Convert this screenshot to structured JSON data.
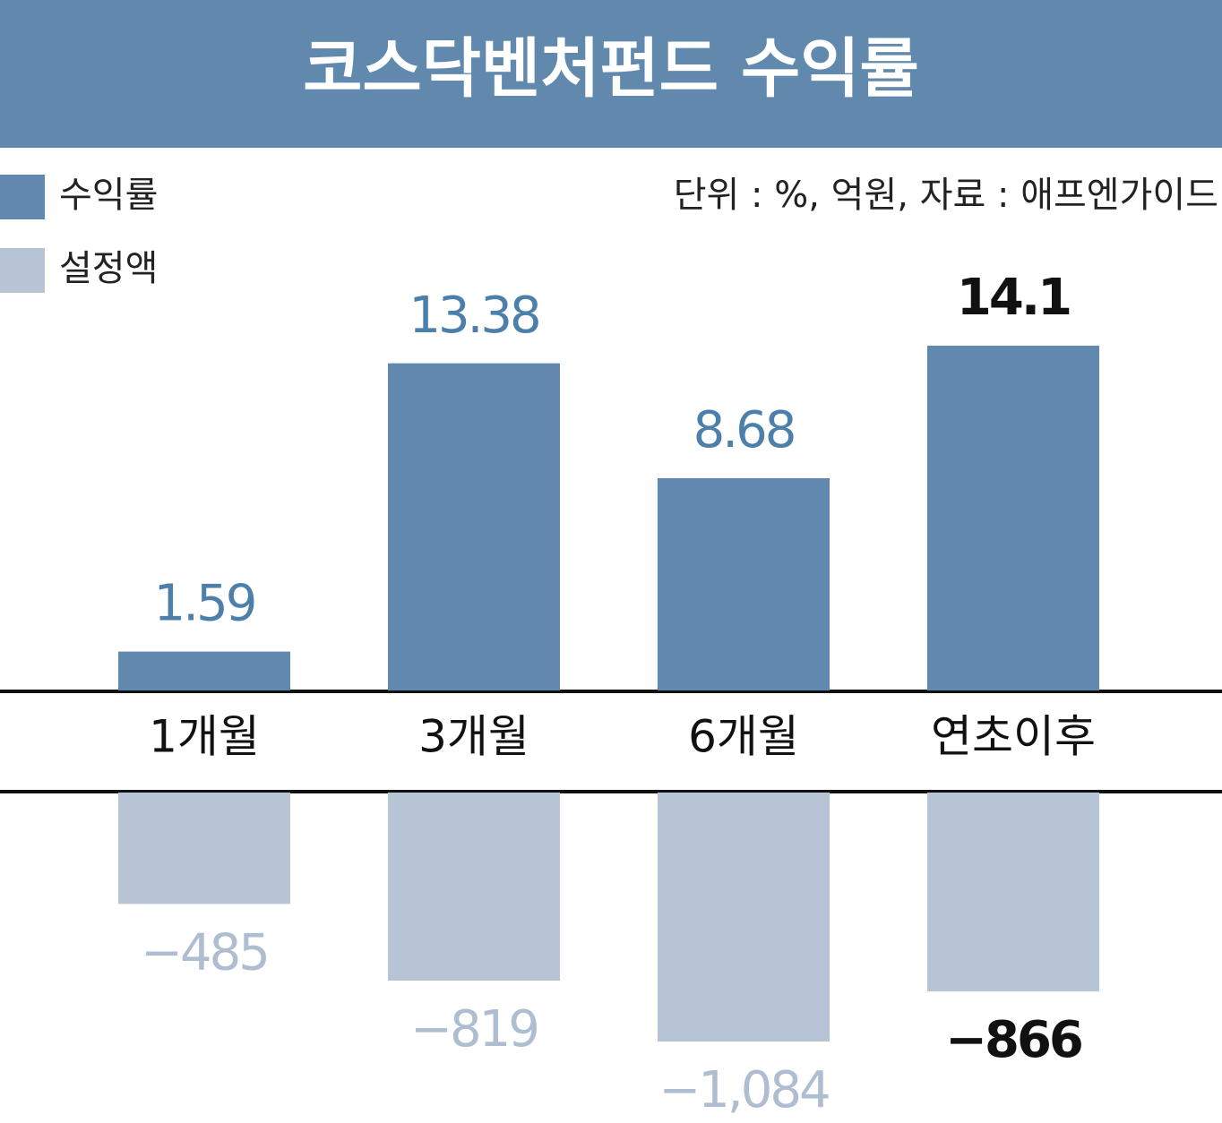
{
  "chart_data": {
    "type": "bar",
    "title": "코스닥벤처펀드 수익률",
    "note": "단위 : %, 억원, 자료 : 애프엔가이드",
    "categories": [
      "1개월",
      "3개월",
      "6개월",
      "연초이후"
    ],
    "series": [
      {
        "name": "수익률",
        "color": "#6189b0",
        "values": [
          1.59,
          13.38,
          8.68,
          14.1
        ]
      },
      {
        "name": "설정액",
        "color": "#b6c4d6",
        "values": [
          -485,
          -819,
          -1084,
          -866
        ],
        "value_labels": [
          "−485",
          "−819",
          "−1,084",
          "−866"
        ]
      }
    ]
  }
}
